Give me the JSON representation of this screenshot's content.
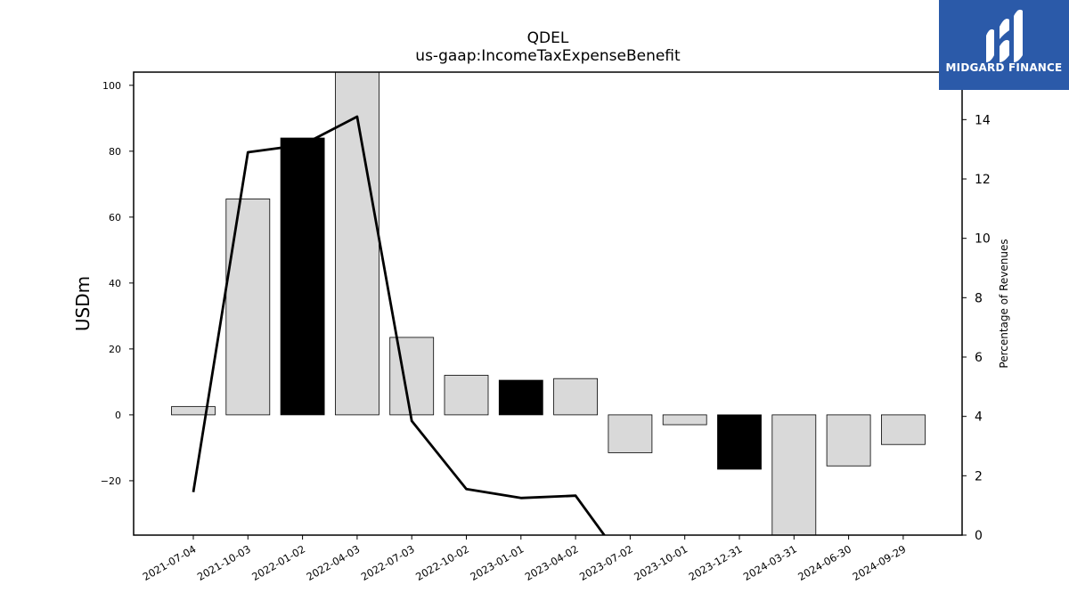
{
  "chart_data": {
    "type": "bar",
    "title": "QDEL",
    "subtitle": "us-gaap:IncomeTaxExpenseBenefit",
    "ylabel": "USDm",
    "y2label": "Percentage of Revenues",
    "categories": [
      "2021-07-04",
      "2021-10-03",
      "2022-01-02",
      "2022-04-03",
      "2022-07-03",
      "2022-10-02",
      "2023-01-01",
      "2023-04-02",
      "2023-07-02",
      "2023-10-01",
      "2023-12-31",
      "2024-03-31",
      "2024-06-30",
      "2024-09-29"
    ],
    "series": [
      {
        "kind": "bar",
        "values": [
          2.5,
          65.5,
          84.0,
          104.0,
          23.5,
          12.0,
          10.5,
          11.0,
          -11.5,
          -3.0,
          -16.5,
          -37.0,
          -15.5,
          -9.0
        ],
        "colors": [
          "#d9d9d9",
          "#d9d9d9",
          "#000000",
          "#d9d9d9",
          "#d9d9d9",
          "#d9d9d9",
          "#000000",
          "#d9d9d9",
          "#d9d9d9",
          "#d9d9d9",
          "#000000",
          "#d9d9d9",
          "#d9d9d9",
          "#d9d9d9"
        ]
      },
      {
        "kind": "line",
        "axis": "right",
        "values": [
          1.45,
          12.9,
          13.15,
          14.1,
          3.85,
          1.55,
          1.25,
          1.33,
          -1.2,
          null,
          null,
          null,
          null,
          null
        ]
      }
    ],
    "ylim": [
      -36.5,
      104.0
    ],
    "y_ticks": [
      -20,
      0,
      20,
      40,
      60,
      80,
      100
    ],
    "y2lim": [
      0,
      15.6
    ],
    "y2_ticks": [
      0,
      2,
      4,
      6,
      8,
      10,
      12,
      14
    ],
    "grid": false,
    "legend": "none"
  },
  "logo": {
    "text": "MIDGARD FINANCE",
    "color": "#2b5aa9"
  }
}
